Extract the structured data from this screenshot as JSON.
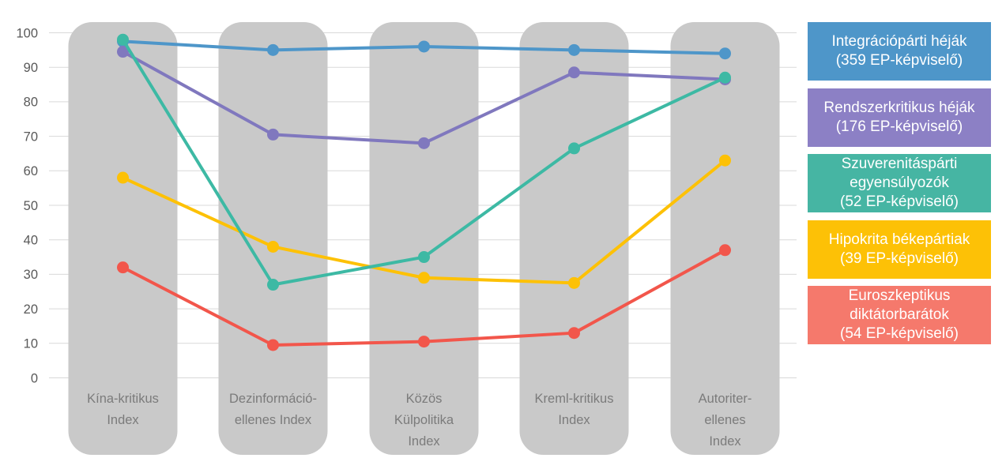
{
  "chart_data": {
    "type": "line",
    "title": "",
    "xlabel": "",
    "ylabel": "",
    "ylim": [
      0,
      100
    ],
    "yticks": [
      0,
      10,
      20,
      30,
      40,
      50,
      60,
      70,
      80,
      90,
      100
    ],
    "grid": true,
    "legend_position": "right",
    "categories": [
      {
        "name": "Kína-kritikus Index",
        "label_lines": [
          "Kína-kritikus",
          "Index"
        ]
      },
      {
        "name": "Dezinformáció-ellenes Index",
        "label_lines": [
          "Dezinformáció-",
          "ellenes Index"
        ]
      },
      {
        "name": "Közös Külpolitika Index",
        "label_lines": [
          "Közös",
          "Külpolitika",
          "Index"
        ]
      },
      {
        "name": "Kreml-kritikus Index",
        "label_lines": [
          "Kreml-kritikus",
          "Index"
        ]
      },
      {
        "name": "Autoriter-ellenes Index",
        "label_lines": [
          "Autoriter-",
          "ellenes",
          "Index"
        ]
      }
    ],
    "series": [
      {
        "name": "Integrációpárti héják",
        "count_label": "(359 EP-képviselő)",
        "legend_lines": [
          "Integrációpárti héják",
          "(359 EP-képviselő)"
        ],
        "color": "#4E96C9",
        "legend_color": "#4E96C9",
        "values": [
          97.5,
          95,
          96,
          95,
          94
        ]
      },
      {
        "name": "Rendszerkritikus héják",
        "count_label": "(176 EP-képviselő)",
        "legend_lines": [
          "Rendszerkritikus héják",
          "(176 EP-képviselő)"
        ],
        "color": "#8078BE",
        "legend_color": "#8C80C5",
        "values": [
          94.5,
          70.5,
          68,
          88.5,
          86.5
        ]
      },
      {
        "name": "Szuverenitáspárti egyensúlyozók",
        "count_label": "(52 EP-képviselő)",
        "legend_lines": [
          "Szuverenitáspárti",
          "egyensúlyozók",
          "(52 EP-képviselő)"
        ],
        "color": "#3DB9A4",
        "legend_color": "#46B5A3",
        "values": [
          98,
          27,
          35,
          66.5,
          87
        ]
      },
      {
        "name": "Hipokrita békepártiak",
        "count_label": "(39 EP-képviselő)",
        "legend_lines": [
          "Hipokrita békepártiak",
          "(39 EP-képviselő)"
        ],
        "color": "#FDC106",
        "legend_color": "#FDC106",
        "values": [
          58,
          38,
          29,
          27.5,
          63
        ]
      },
      {
        "name": "Euroszkeptikus diktátorbarátok",
        "count_label": "(54 EP-képviselő)",
        "legend_lines": [
          "Euroszkeptikus",
          "diktátorbarátok",
          "(54 EP-képviselő)"
        ],
        "color": "#F2564B",
        "legend_color": "#F5796C",
        "values": [
          32,
          9.5,
          10.5,
          13,
          37
        ]
      }
    ],
    "draw_order": [
      0,
      1,
      3,
      4,
      2
    ],
    "colors": {
      "grid": "#D9D9D9",
      "column": "#C9C9C9",
      "ytick_text": "#595959",
      "xlabel_text": "#7B7B7B",
      "legend_text": "#FFFFFF",
      "background": "#FFFFFF"
    }
  }
}
